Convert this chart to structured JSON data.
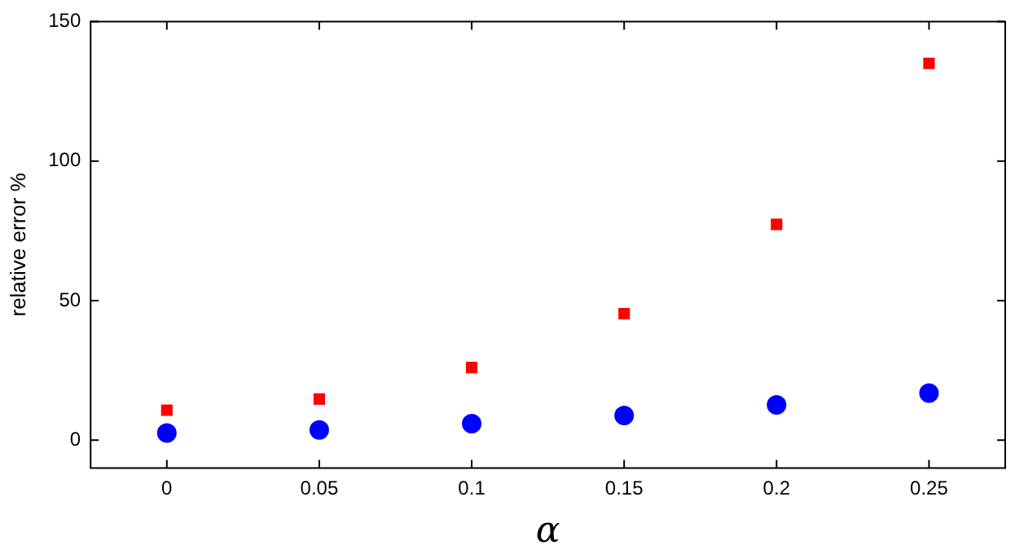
{
  "chart_data": {
    "type": "scatter",
    "xlabel": "α",
    "ylabel": "relative error %",
    "x": [
      0,
      0.05,
      0.1,
      0.15,
      0.2,
      0.25
    ],
    "series": [
      {
        "color": "#ff0000",
        "marker": "square",
        "values": [
          10.7,
          14.7,
          26,
          45.3,
          77.3,
          135
        ]
      },
      {
        "color": "#0000ff",
        "marker": "circle",
        "values": [
          2.5,
          3.6,
          5.9,
          8.8,
          12.6,
          16.8
        ]
      }
    ],
    "xlim": [
      -0.025,
      0.275
    ],
    "xticks": [
      0,
      0.05,
      0.1,
      0.15,
      0.2,
      0.25
    ],
    "ylim": [
      -10,
      150
    ],
    "yticks": [
      0,
      50,
      100,
      150
    ],
    "grid": false,
    "legend": false
  }
}
